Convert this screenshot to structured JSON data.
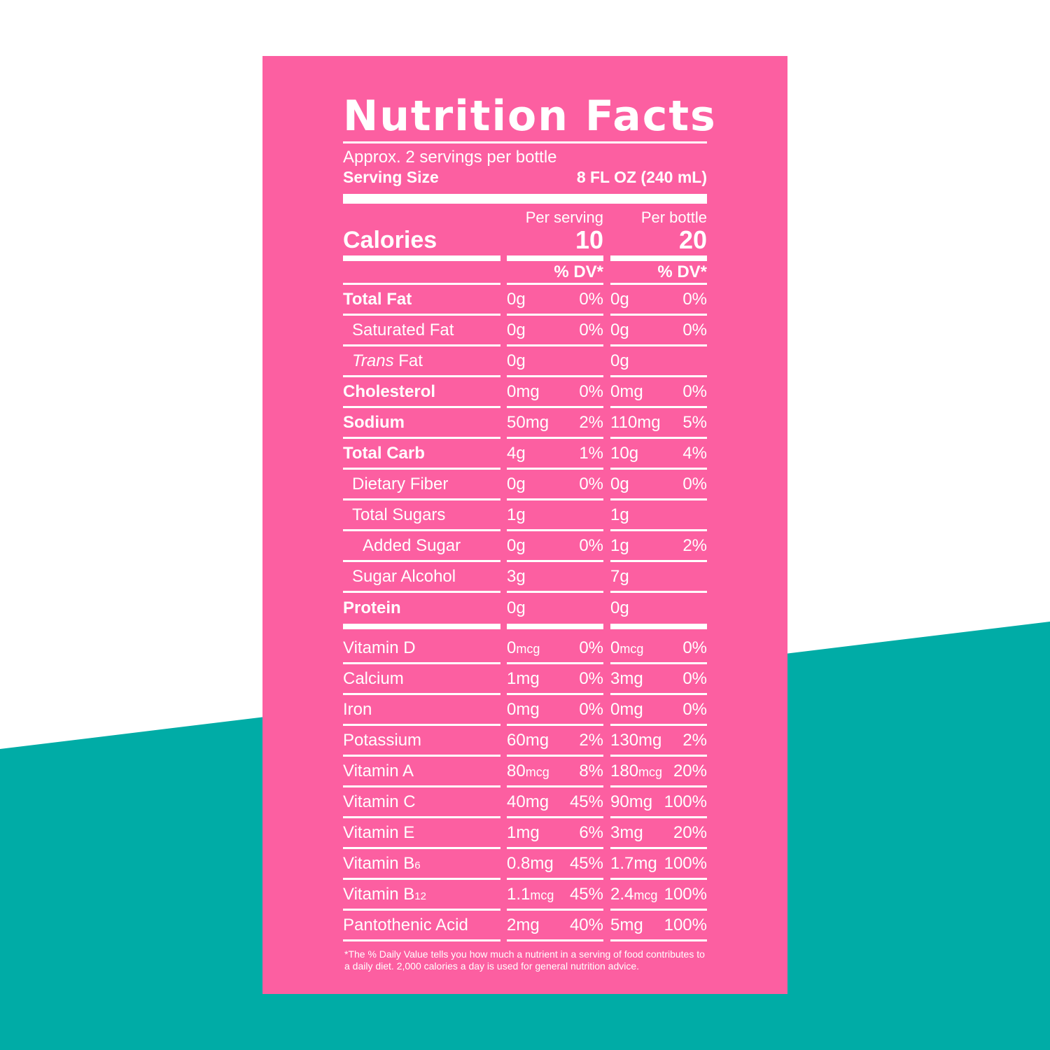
{
  "colors": {
    "panel": "#fc5fa1",
    "teal": "#00aca6",
    "text": "#ffffff",
    "background": "#ffffff"
  },
  "label": {
    "title": "Nutrition Facts",
    "servings_per_container": "Approx. 2 servings per bottle",
    "serving_size_label": "Serving Size",
    "serving_size_value": "8 FL OZ (240 mL)",
    "col_head_1": "Per serving",
    "col_head_2": "Per bottle",
    "calories_label": "Calories",
    "calories_serving": "10",
    "calories_bottle": "20",
    "dv_header_1": "% DV*",
    "dv_header_2": "% DV*"
  },
  "nutrients": [
    {
      "name": "Total Fat",
      "amt1": "0g",
      "dv1": "0%",
      "amt2": "0g",
      "dv2": "0%"
    },
    {
      "name": "Saturated Fat",
      "amt1": "0g",
      "dv1": "0%",
      "amt2": "0g",
      "dv2": "0%"
    },
    {
      "name_italic": "Trans",
      "name_rest": " Fat",
      "amt1": "0g",
      "dv1": "",
      "amt2": "0g",
      "dv2": ""
    },
    {
      "name": "Cholesterol",
      "amt1": "0mg",
      "dv1": "0%",
      "amt2": "0mg",
      "dv2": "0%"
    },
    {
      "name": "Sodium",
      "amt1": "50mg",
      "dv1": "2%",
      "amt2": "110mg",
      "dv2": "5%"
    },
    {
      "name": "Total Carb",
      "amt1": "4g",
      "dv1": "1%",
      "amt2": "10g",
      "dv2": "4%"
    },
    {
      "name": "Dietary Fiber",
      "amt1": "0g",
      "dv1": "0%",
      "amt2": "0g",
      "dv2": "0%"
    },
    {
      "name": "Total Sugars",
      "amt1": "1g",
      "dv1": "",
      "amt2": "1g",
      "dv2": ""
    },
    {
      "name": "Added Sugar",
      "amt1": "0g",
      "dv1": "0%",
      "amt2": "1g",
      "dv2": "2%"
    },
    {
      "name": "Sugar Alcohol",
      "amt1": "3g",
      "dv1": "",
      "amt2": "7g",
      "dv2": ""
    },
    {
      "name": "Protein",
      "amt1": "0g",
      "dv1": "",
      "amt2": "0g",
      "dv2": ""
    }
  ],
  "vitamins": [
    {
      "name": "Vitamin D",
      "num1": "0",
      "unit1": "mcg",
      "dv1": "0%",
      "num2": "0",
      "unit2": "mcg",
      "dv2": "0%"
    },
    {
      "name": "Calcium",
      "num1": "1mg",
      "unit1": "",
      "dv1": "0%",
      "num2": "3mg",
      "unit2": "",
      "dv2": "0%"
    },
    {
      "name": "Iron",
      "num1": "0mg",
      "unit1": "",
      "dv1": "0%",
      "num2": "0mg",
      "unit2": "",
      "dv2": "0%"
    },
    {
      "name": "Potassium",
      "num1": "60mg",
      "unit1": "",
      "dv1": "2%",
      "num2": "130mg",
      "unit2": "",
      "dv2": "2%"
    },
    {
      "name": "Vitamin A",
      "num1": "80",
      "unit1": "mcg",
      "dv1": "8%",
      "num2": "180",
      "unit2": "mcg",
      "dv2": "20%"
    },
    {
      "name": "Vitamin C",
      "num1": "40mg",
      "unit1": "",
      "dv1": "45%",
      "num2": "90mg",
      "unit2": "",
      "dv2": "100%"
    },
    {
      "name": "Vitamin E",
      "num1": "1mg",
      "unit1": "",
      "dv1": "6%",
      "num2": "3mg",
      "unit2": "",
      "dv2": "20%"
    },
    {
      "name_base": "Vitamin B",
      "name_sub": "6",
      "num1": "0.8mg",
      "unit1": "",
      "dv1": "45%",
      "num2": "1.7mg",
      "unit2": "",
      "dv2": "100%"
    },
    {
      "name_base": "Vitamin B",
      "name_sub": "12",
      "num1": "1.1",
      "unit1": "mcg",
      "dv1": "45%",
      "num2": "2.4",
      "unit2": "mcg",
      "dv2": "100%"
    },
    {
      "name": "Pantothenic Acid",
      "num1": "2mg",
      "unit1": "",
      "dv1": "40%",
      "num2": "5mg",
      "unit2": "",
      "dv2": "100%"
    }
  ],
  "footnote": "*The % Daily Value tells you how much a nutrient in a serving of food contributes to a daily diet. 2,000 calories a day is used for general nutrition advice."
}
